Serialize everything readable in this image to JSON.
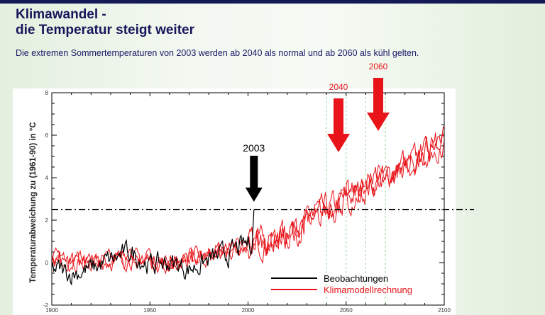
{
  "slide": {
    "title_line1": "Klimawandel -",
    "title_line2": "die Temperatur steigt weiter",
    "subtitle": "Die extremen Sommertemperaturen von 2003 werden ab 2040 als normal und ab 2060 als kühl gelten."
  },
  "chart_data": {
    "type": "line",
    "ylabel": "Temperaturabweichung zu (1961-90)  in °C",
    "xlim": [
      1900,
      2100
    ],
    "ylim": [
      -2,
      8
    ],
    "xticks": [
      "1900",
      "1950",
      "2000",
      "2050",
      "2100"
    ],
    "xtick_values": [
      1900,
      1950,
      2000,
      2050,
      2100
    ],
    "yticks": [
      "-2",
      "0",
      "2",
      "4",
      "6",
      "8"
    ],
    "ytick_values": [
      -2,
      0,
      2,
      4,
      6,
      8
    ],
    "threshold_line": 2.5,
    "guide_years": [
      2040,
      2050,
      2060,
      2070
    ],
    "legend_position": "bottom-right",
    "series": [
      {
        "name": "Beobachtungen",
        "color": "#000000",
        "x": [
          1900,
          1910,
          1920,
          1930,
          1940,
          1950,
          1960,
          1970,
          1980,
          1990,
          2000,
          2002,
          2003
        ],
        "values": [
          -0.3,
          -0.5,
          -0.3,
          0.1,
          0.5,
          -0.1,
          0.0,
          -0.3,
          0.1,
          0.4,
          0.9,
          1.0,
          2.5
        ]
      },
      {
        "name": "Klimamodellrechnung",
        "color": "#e8141a",
        "x": [
          1900,
          1920,
          1940,
          1960,
          1980,
          2000,
          2020,
          2040,
          2060,
          2080,
          2100
        ],
        "values": [
          0.2,
          0.0,
          0.2,
          0.0,
          0.3,
          0.8,
          1.3,
          2.5,
          3.5,
          4.5,
          5.8
        ]
      }
    ],
    "annotations": [
      {
        "label": "2003",
        "year": 2003,
        "color": "#000000"
      },
      {
        "label": "2040",
        "year": 2046,
        "color": "#e8141a"
      },
      {
        "label": "2060",
        "year": 2066,
        "color": "#e8141a"
      }
    ]
  }
}
